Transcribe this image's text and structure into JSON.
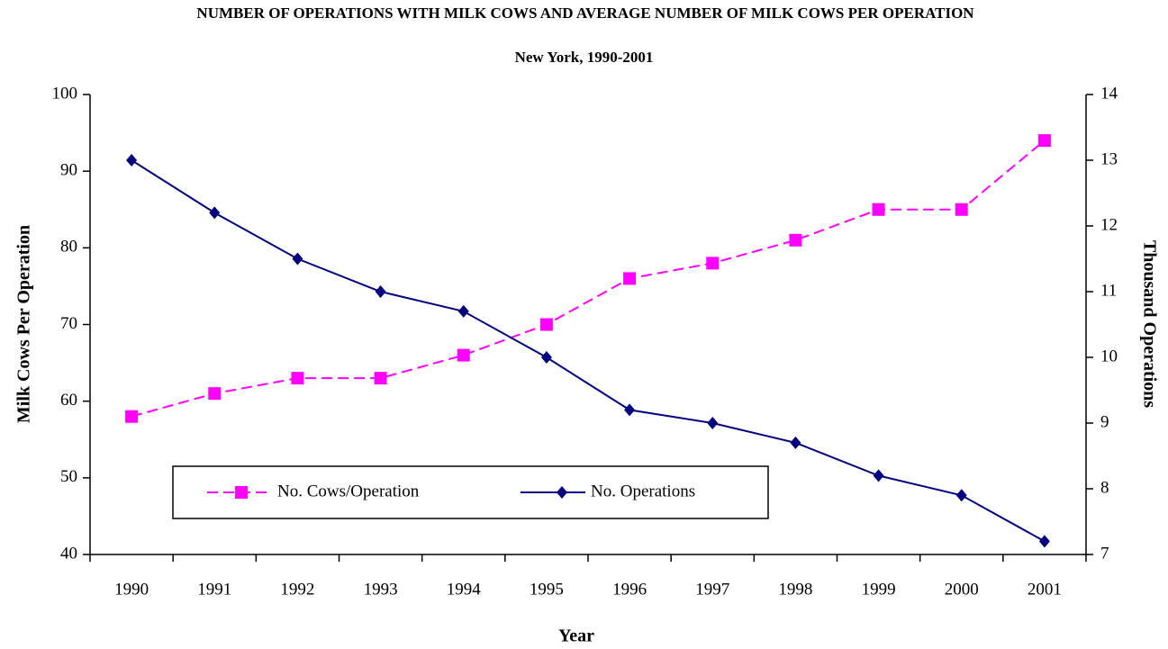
{
  "chart_data": {
    "type": "line",
    "title": "NUMBER OF OPERATIONS WITH MILK COWS AND AVERAGE NUMBER OF MILK COWS PER OPERATION",
    "subtitle": "New York, 1990-2001",
    "x_label": "Year",
    "y_label": "Milk Cows Per Operation",
    "y2_label": "Thousand Operations",
    "categories": [
      "1990",
      "1991",
      "1992",
      "1993",
      "1994",
      "1995",
      "1996",
      "1997",
      "1998",
      "1999",
      "2000",
      "2001"
    ],
    "series": [
      {
        "name": "No. Cows/Operation",
        "color": "#ff00ff",
        "values": [
          58,
          61,
          63,
          63,
          66,
          70,
          76,
          78,
          81,
          85,
          85,
          94
        ]
      },
      {
        "name": "No. Operations",
        "color": "#000080",
        "axis": "y2",
        "values": [
          13.0,
          12.2,
          11.5,
          11.0,
          10.7,
          10.0,
          9.2,
          9.0,
          8.7,
          8.2,
          7.9,
          7.2
        ]
      }
    ],
    "ylim": [
      40,
      100
    ],
    "yticks": [
      40,
      50,
      60,
      70,
      80,
      90,
      100
    ],
    "y2lim": [
      7,
      14
    ],
    "y2ticks": [
      7,
      8,
      9,
      10,
      11,
      12,
      13,
      14
    ],
    "legend": "bottom-left",
    "grid": false
  }
}
